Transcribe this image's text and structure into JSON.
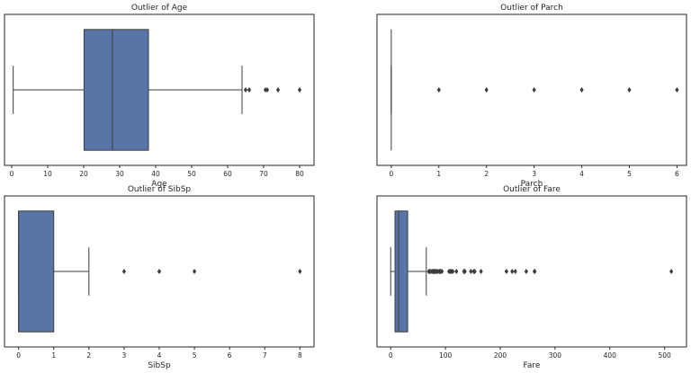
{
  "colors": {
    "box": "#5875a8",
    "line": "#3d3d3d",
    "frame": "#262626",
    "flier": "#3d3d3d"
  },
  "chart_data": [
    {
      "type": "boxplot",
      "title": "Outlier of Age",
      "xlabel": "Age",
      "xlim": [
        -2,
        84
      ],
      "ticks": [
        0,
        10,
        20,
        30,
        40,
        50,
        60,
        70,
        80
      ],
      "tick_labels": [
        "0",
        "10",
        "20",
        "30",
        "40",
        "50",
        "60",
        "70",
        "80"
      ],
      "whisker_low": 0.42,
      "q1": 20.1,
      "median": 28,
      "q3": 38,
      "whisker_high": 64,
      "outliers": [
        65,
        66,
        70.5,
        71,
        74,
        80
      ]
    },
    {
      "type": "boxplot",
      "title": "Outlier of Parch",
      "xlabel": "Parch",
      "xlim": [
        -0.3,
        6.2
      ],
      "ticks": [
        0,
        1,
        2,
        3,
        4,
        5,
        6
      ],
      "tick_labels": [
        "0",
        "1",
        "2",
        "3",
        "4",
        "5",
        "6"
      ],
      "whisker_low": 0,
      "q1": 0,
      "median": 0,
      "q3": 0,
      "whisker_high": 0,
      "outliers": [
        1,
        2,
        3,
        4,
        5,
        6
      ]
    },
    {
      "type": "boxplot",
      "title": "Outlier of SibSp",
      "xlabel": "SibSp",
      "xlim": [
        -0.4,
        8.4
      ],
      "ticks": [
        0,
        1,
        2,
        3,
        4,
        5,
        6,
        7,
        8
      ],
      "tick_labels": [
        "0",
        "1",
        "2",
        "3",
        "4",
        "5",
        "6",
        "7",
        "8"
      ],
      "whisker_low": 0,
      "q1": 0,
      "median": 0,
      "q3": 1,
      "whisker_high": 2,
      "outliers": [
        3,
        4,
        5,
        8
      ]
    },
    {
      "type": "boxplot",
      "title": "Outlier of Fare",
      "xlabel": "Fare",
      "xlim": [
        -25,
        540
      ],
      "ticks": [
        0,
        100,
        200,
        300,
        400,
        500
      ],
      "tick_labels": [
        "0",
        "100",
        "200",
        "300",
        "400",
        "500"
      ],
      "whisker_low": 0,
      "q1": 7.9,
      "median": 14.45,
      "q3": 31,
      "whisker_high": 65,
      "outliers": [
        69.5,
        71,
        73.5,
        76.7,
        77,
        78,
        79.2,
        79.6,
        80,
        82.2,
        83.2,
        83.5,
        86.5,
        89.1,
        90,
        91.1,
        93.5,
        106.4,
        108.9,
        110.9,
        113.3,
        120,
        133.7,
        134.5,
        135.6,
        146.5,
        151.6,
        153.5,
        164.9,
        211.3,
        221.8,
        227.5,
        247.5,
        262.4,
        263,
        512.3
      ]
    }
  ]
}
